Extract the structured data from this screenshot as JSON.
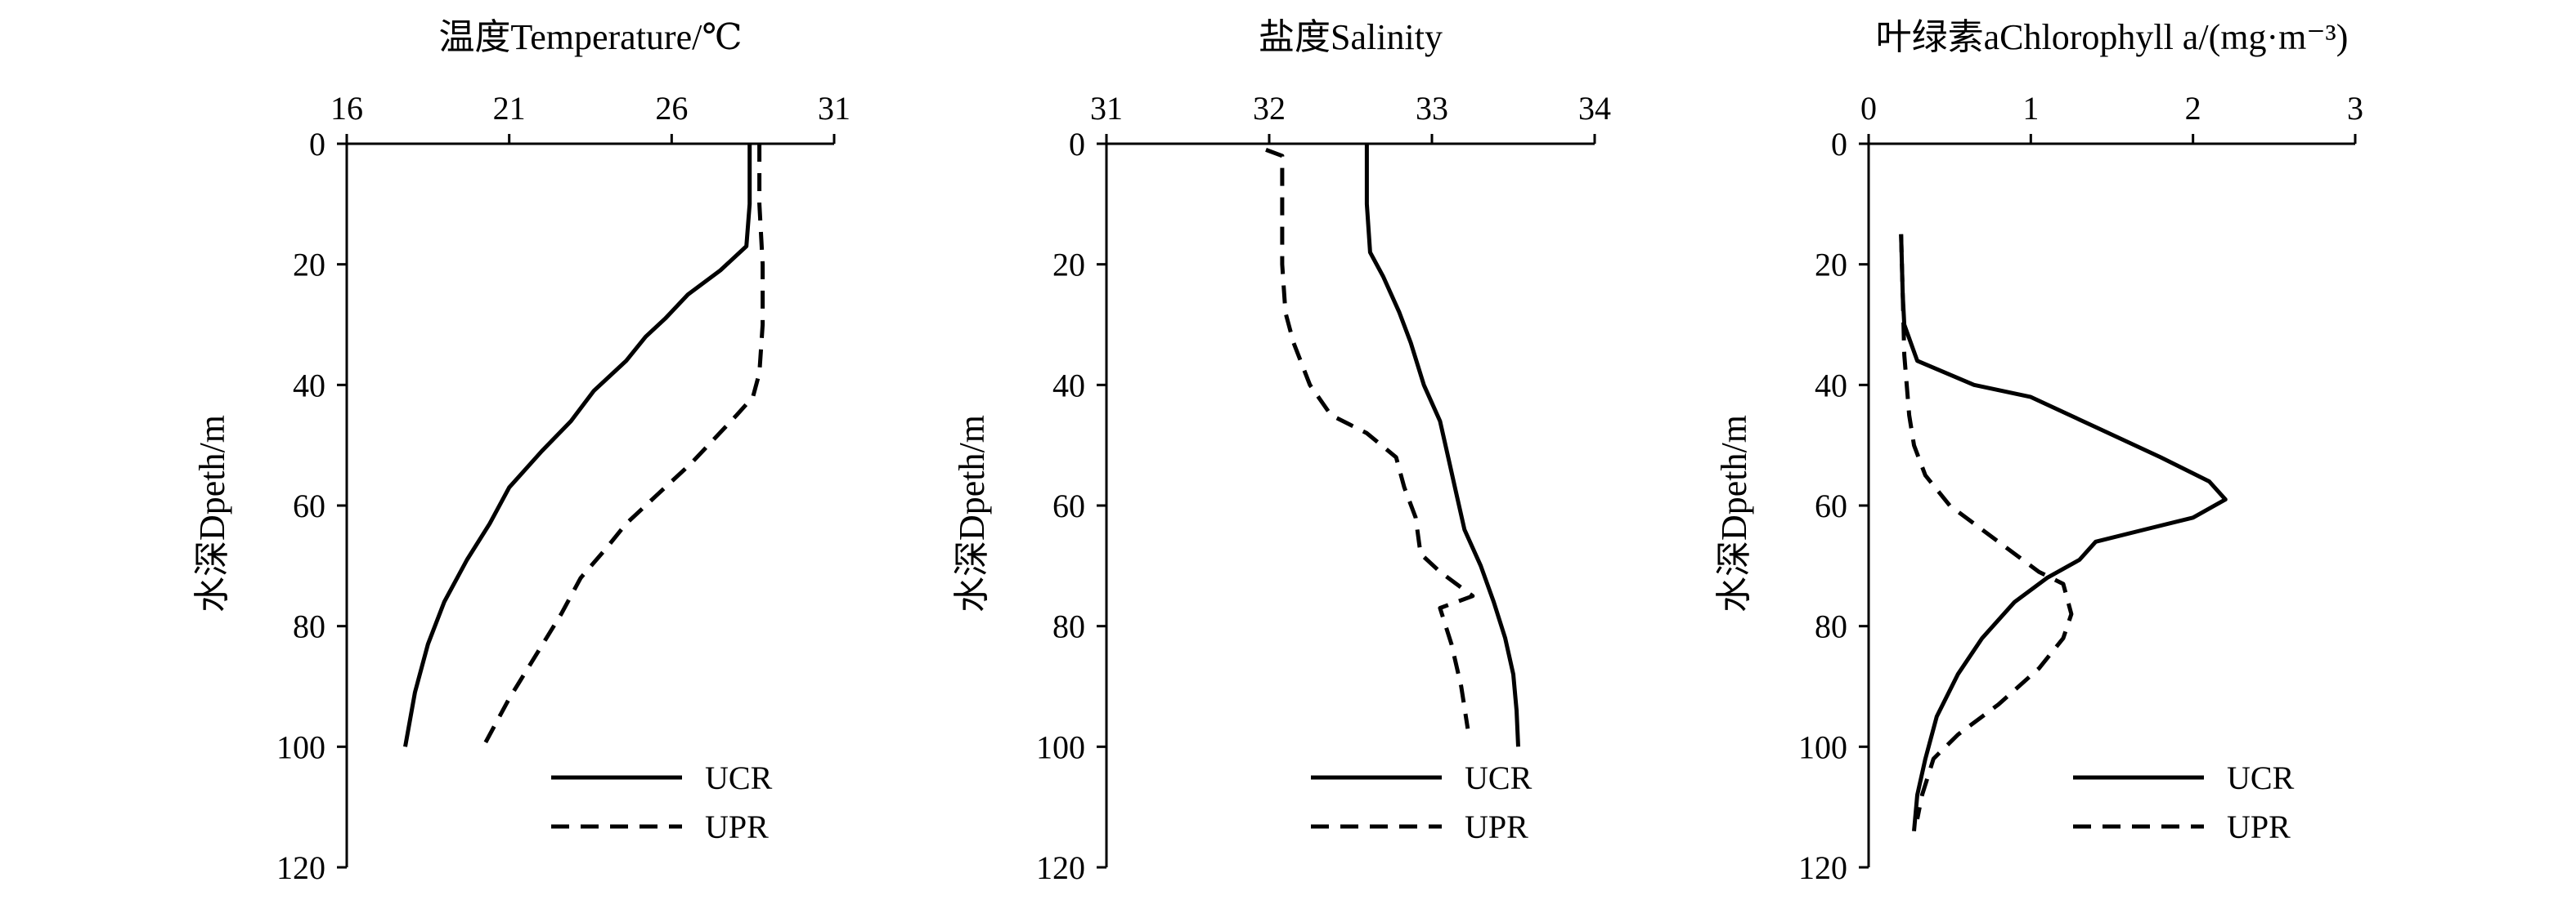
{
  "chart_data": [
    {
      "type": "line",
      "title": "温度Temperature/℃",
      "ylabel": "水深Dpeth/m",
      "xlim": [
        16,
        31
      ],
      "ylim": [
        0,
        120
      ],
      "xticks": [
        16,
        21,
        26,
        31
      ],
      "yticks": [
        0,
        20,
        40,
        60,
        80,
        100,
        120
      ],
      "y_inverted": true,
      "x_axis_position": "top",
      "legend": "bottom-right",
      "series": [
        {
          "name": "UCR",
          "style": "solid",
          "x": [
            28.4,
            28.4,
            28.3,
            27.5,
            26.5,
            25.8,
            25.2,
            24.6,
            23.6,
            22.9,
            22.0,
            21.0,
            20.4,
            19.7,
            19.0,
            18.5,
            18.1,
            17.8
          ],
          "y": [
            0,
            10,
            17,
            21,
            25,
            29,
            32,
            36,
            41,
            46,
            51,
            57,
            63,
            69,
            76,
            83,
            91,
            100
          ]
        },
        {
          "name": "UPR",
          "style": "dashed",
          "x": [
            28.7,
            28.7,
            28.8,
            28.8,
            28.7,
            28.5,
            28.0,
            27.3,
            26.6,
            25.6,
            24.6,
            24.0,
            23.2,
            22.6,
            21.8,
            21.0,
            20.2
          ],
          "y": [
            0,
            10,
            20,
            30,
            38,
            42,
            45,
            49,
            53,
            58,
            63,
            67,
            72,
            78,
            85,
            92,
            100
          ]
        }
      ]
    },
    {
      "type": "line",
      "title": "盐度Salinity",
      "ylabel": "水深Dpeth/m",
      "xlim": [
        31,
        34
      ],
      "ylim": [
        0,
        120
      ],
      "xticks": [
        31,
        32,
        33,
        34
      ],
      "yticks": [
        0,
        20,
        40,
        60,
        80,
        100,
        120
      ],
      "y_inverted": true,
      "x_axis_position": "top",
      "legend": "bottom-right",
      "series": [
        {
          "name": "UCR",
          "style": "solid",
          "x": [
            32.6,
            32.6,
            32.62,
            32.7,
            32.8,
            32.87,
            32.95,
            33.05,
            33.1,
            33.15,
            33.2,
            33.3,
            33.38,
            33.45,
            33.5,
            33.52,
            33.53
          ],
          "y": [
            0,
            10,
            18,
            22,
            28,
            33,
            40,
            46,
            52,
            58,
            64,
            70,
            76,
            82,
            88,
            94,
            100
          ]
        },
        {
          "name": "UPR",
          "style": "dashed",
          "x": [
            31.98,
            32.08,
            32.08,
            32.08,
            32.1,
            32.15,
            32.25,
            32.38,
            32.6,
            32.78,
            32.83,
            32.9,
            32.93,
            33.05,
            33.25,
            33.05,
            33.12,
            33.18,
            33.22
          ],
          "y": [
            1,
            2,
            10,
            20,
            28,
            33,
            40,
            45,
            48,
            52,
            57,
            62,
            68,
            71,
            75,
            77,
            83,
            90,
            97
          ]
        }
      ]
    },
    {
      "type": "line",
      "title": "叶绿素aChlorophyll a/(mg·m⁻³)",
      "ylabel": "水深Dpeth/m",
      "xlim": [
        0,
        3
      ],
      "ylim": [
        0,
        120
      ],
      "xticks": [
        0,
        1,
        2,
        3
      ],
      "yticks": [
        0,
        20,
        40,
        60,
        80,
        100,
        120
      ],
      "y_inverted": true,
      "x_axis_position": "top",
      "legend": "bottom-right",
      "series": [
        {
          "name": "UCR",
          "style": "solid",
          "x": [
            0.2,
            0.21,
            0.22,
            0.3,
            0.65,
            1.0,
            1.4,
            1.8,
            2.1,
            2.2,
            2.0,
            1.7,
            1.4,
            1.3,
            1.1,
            0.9,
            0.7,
            0.55,
            0.42,
            0.35,
            0.3,
            0.28
          ],
          "y": [
            15,
            25,
            30,
            36,
            40,
            42,
            47,
            52,
            56,
            59,
            62,
            64,
            66,
            69,
            72,
            76,
            82,
            88,
            95,
            102,
            108,
            114
          ]
        },
        {
          "name": "UPR",
          "style": "dashed",
          "x": [
            0.2,
            0.21,
            0.22,
            0.25,
            0.28,
            0.35,
            0.5,
            0.7,
            0.9,
            1.05,
            1.2,
            1.25,
            1.2,
            1.05,
            0.8,
            0.55,
            0.4,
            0.33,
            0.3
          ],
          "y": [
            15,
            25,
            35,
            45,
            50,
            55,
            60,
            64,
            68,
            71,
            73,
            78,
            82,
            87,
            93,
            98,
            102,
            108,
            112
          ]
        }
      ]
    }
  ]
}
